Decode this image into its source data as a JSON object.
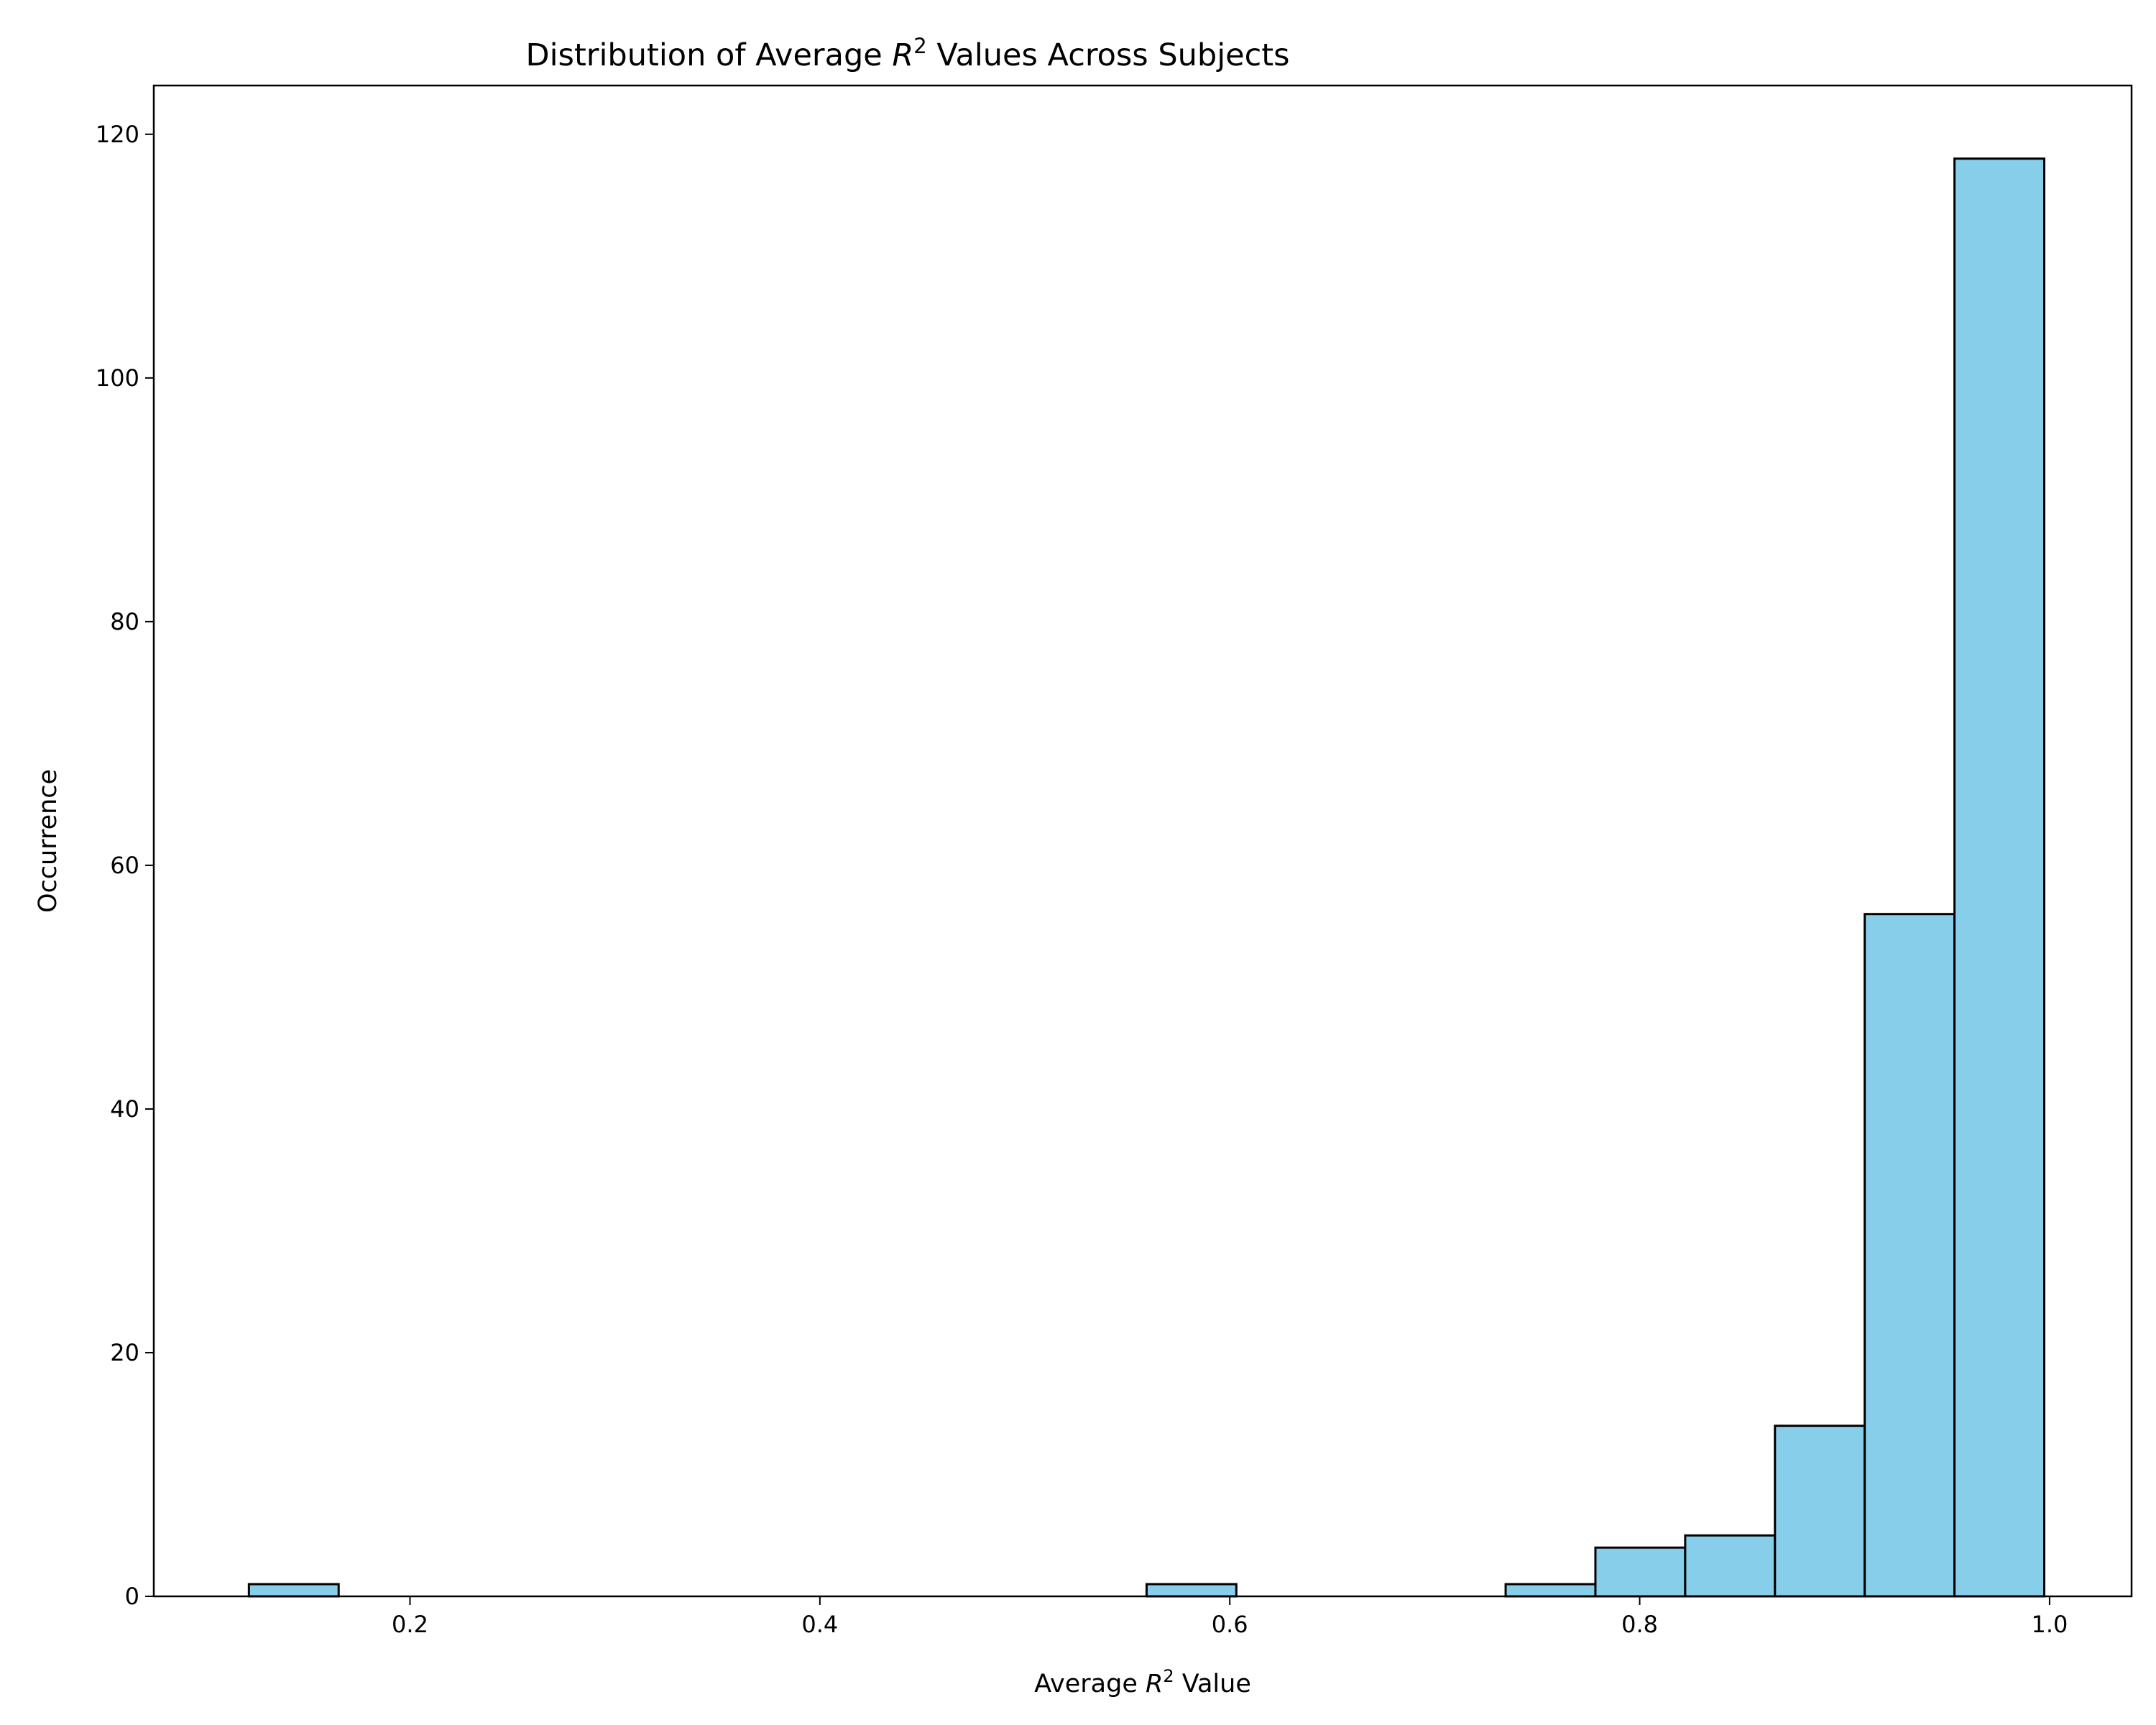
{
  "chart_data": {
    "type": "histogram",
    "title": {
      "prefix": "Distribution of Average ",
      "symbol": "R",
      "exponent": "2",
      "suffix": " Values Across Subjects"
    },
    "xlabel": {
      "prefix": "Average ",
      "symbol": "R",
      "exponent": "2",
      "suffix": " Value"
    },
    "ylabel": "Occurrence",
    "xlim": [
      0.075,
      1.04
    ],
    "ylim": [
      0,
      124
    ],
    "xticks": [
      0.2,
      0.4,
      0.6,
      0.8,
      1.0
    ],
    "xtick_labels": [
      "0.2",
      "0.4",
      "0.6",
      "0.8",
      "1.0"
    ],
    "yticks": [
      0,
      20,
      40,
      60,
      80,
      100,
      120
    ],
    "ytick_labels": [
      "0",
      "20",
      "40",
      "60",
      "80",
      "100",
      "120"
    ],
    "bin_edges": [
      0.1214,
      0.1652,
      0.209,
      0.2528,
      0.2966,
      0.3404,
      0.3842,
      0.428,
      0.4718,
      0.5156,
      0.5594,
      0.6032,
      0.647,
      0.6908,
      0.7346,
      0.7784,
      0.8222,
      0.866,
      0.9098,
      0.9536,
      0.9974
    ],
    "counts": [
      1,
      0,
      0,
      0,
      0,
      0,
      0,
      0,
      0,
      0,
      1,
      0,
      0,
      0,
      1,
      4,
      5,
      14,
      56,
      118
    ],
    "bar_color": "#87ceeb",
    "edge_color": "#000000",
    "grid": false,
    "legend": false
  }
}
